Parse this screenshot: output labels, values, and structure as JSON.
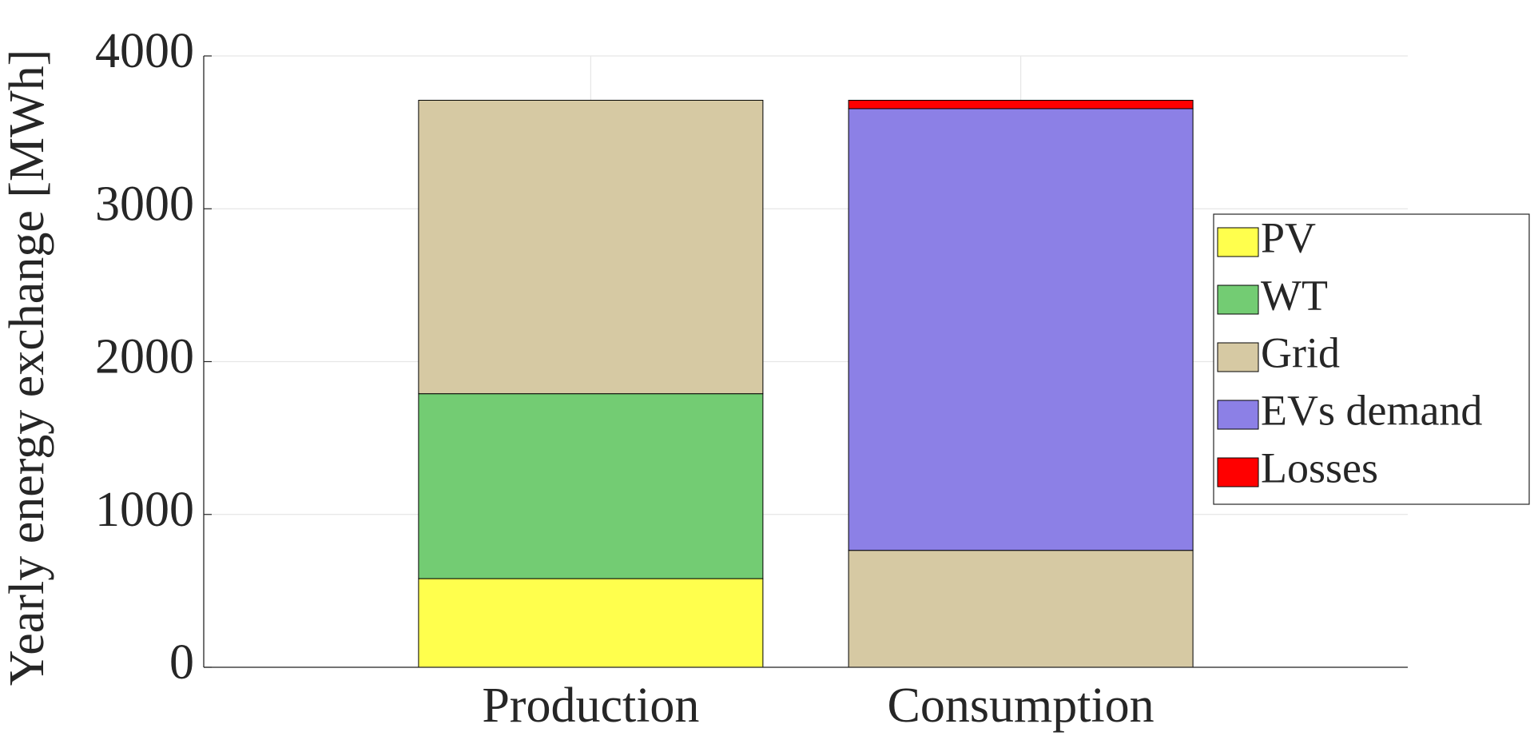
{
  "chart_data": {
    "type": "stacked_bar",
    "y_label": "Yearly energy exchange [MWh]",
    "categories": [
      "Production",
      "Consumption"
    ],
    "series": [
      {
        "name": "PV",
        "color": "#ffff4d",
        "values": [
          580,
          null
        ]
      },
      {
        "name": "WT",
        "color": "#73cc73",
        "values": [
          1210,
          null
        ]
      },
      {
        "name": "Grid",
        "color": "#d6c9a3",
        "values": [
          1920,
          765
        ]
      },
      {
        "name": "EVs demand",
        "color": "#8c80e6",
        "values": [
          null,
          2890
        ]
      },
      {
        "name": "Losses",
        "color": "#ff0000",
        "values": [
          null,
          55
        ]
      }
    ],
    "ylim": [
      0,
      4000
    ],
    "yticks": [
      0,
      1000,
      2000,
      3000,
      4000
    ],
    "grid": true,
    "legend": "right"
  }
}
